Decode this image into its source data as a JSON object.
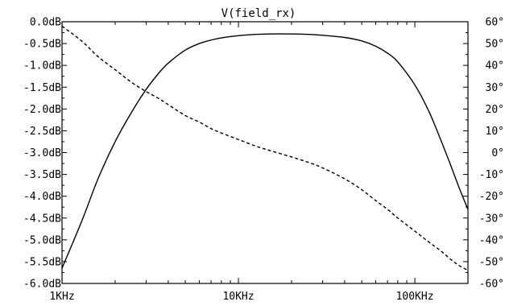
{
  "chart_data": {
    "type": "line",
    "title": "V(field_rx)",
    "x_scale": "log",
    "x_unit": "Hz",
    "xlim": [
      1000,
      200000
    ],
    "x_tick_labels": [
      {
        "value": 1000,
        "label": "1KHz"
      },
      {
        "value": 10000,
        "label": "10KHz"
      },
      {
        "value": 100000,
        "label": "100KHz"
      }
    ],
    "ylim_left": [
      -6.0,
      0.0
    ],
    "y_left_tick_labels": [
      {
        "value": 0.0,
        "label": "0.0dB"
      },
      {
        "value": -0.5,
        "label": "-0.5dB"
      },
      {
        "value": -1.0,
        "label": "-1.0dB"
      },
      {
        "value": -1.5,
        "label": "-1.5dB"
      },
      {
        "value": -2.0,
        "label": "-2.0dB"
      },
      {
        "value": -2.5,
        "label": "-2.5dB"
      },
      {
        "value": -3.0,
        "label": "-3.0dB"
      },
      {
        "value": -3.5,
        "label": "-3.5dB"
      },
      {
        "value": -4.0,
        "label": "-4.0dB"
      },
      {
        "value": -4.5,
        "label": "-4.5dB"
      },
      {
        "value": -5.0,
        "label": "-5.0dB"
      },
      {
        "value": -5.5,
        "label": "-5.5dB"
      },
      {
        "value": -6.0,
        "label": "-6.0dB"
      }
    ],
    "ylim_right": [
      -60,
      60
    ],
    "y_right_tick_labels": [
      {
        "value": 60,
        "label": "60°"
      },
      {
        "value": 50,
        "label": "50°"
      },
      {
        "value": 40,
        "label": "40°"
      },
      {
        "value": 30,
        "label": "30°"
      },
      {
        "value": 20,
        "label": "20°"
      },
      {
        "value": 10,
        "label": "10°"
      },
      {
        "value": 0,
        "label": "0°"
      },
      {
        "value": -10,
        "label": "-10°"
      },
      {
        "value": -20,
        "label": "-20°"
      },
      {
        "value": -30,
        "label": "-30°"
      },
      {
        "value": -40,
        "label": "-40°"
      },
      {
        "value": -50,
        "label": "-50°"
      },
      {
        "value": -60,
        "label": "-60°"
      }
    ],
    "grid": false,
    "series": [
      {
        "axis": "left",
        "line_style": "solid",
        "color": "#000000",
        "x": [
          1000,
          1300,
          1600,
          2000,
          2500,
          3000,
          3500,
          4000,
          5000,
          6000,
          7000,
          8000,
          10000,
          12500,
          15000,
          20000,
          25000,
          30000,
          40000,
          50000,
          60000,
          70000,
          80000,
          100000,
          120000,
          140000,
          160000,
          180000,
          200000
        ],
        "y": [
          -5.65,
          -4.55,
          -3.6,
          -2.75,
          -2.05,
          -1.55,
          -1.2,
          -0.95,
          -0.65,
          -0.5,
          -0.42,
          -0.37,
          -0.32,
          -0.29,
          -0.28,
          -0.28,
          -0.29,
          -0.31,
          -0.36,
          -0.44,
          -0.56,
          -0.72,
          -0.92,
          -1.45,
          -2.05,
          -2.7,
          -3.3,
          -3.85,
          -4.3
        ]
      },
      {
        "axis": "right",
        "line_style": "dashed",
        "color": "#000000",
        "x": [
          1000,
          1300,
          1600,
          2000,
          2500,
          3000,
          3500,
          4000,
          5000,
          6000,
          7000,
          8000,
          10000,
          12500,
          15000,
          20000,
          25000,
          30000,
          40000,
          50000,
          60000,
          70000,
          80000,
          100000,
          120000,
          140000,
          160000,
          180000,
          200000
        ],
        "y": [
          58,
          51,
          44,
          38,
          32,
          28,
          25,
          22,
          17,
          14,
          11,
          9,
          6,
          3,
          1,
          -2,
          -4.5,
          -7,
          -12,
          -17,
          -22,
          -26,
          -30,
          -36,
          -41,
          -45,
          -49,
          -52,
          -54
        ]
      }
    ]
  }
}
